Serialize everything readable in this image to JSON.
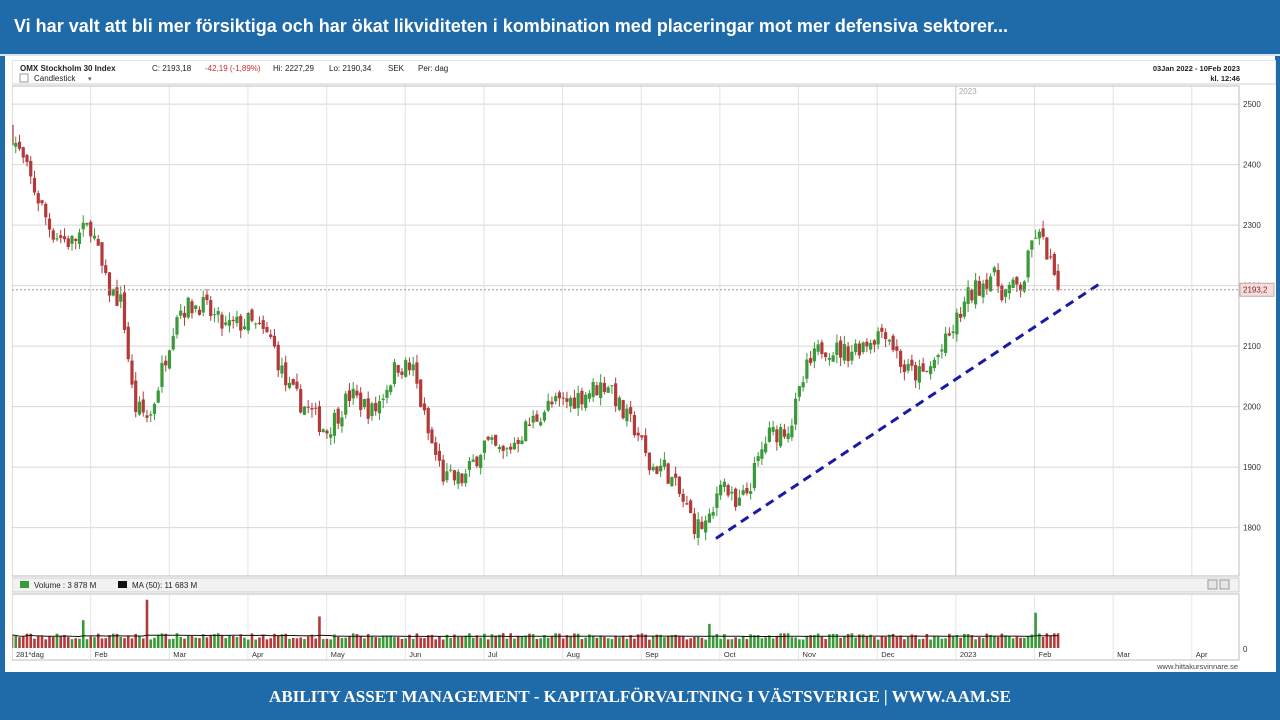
{
  "header": {
    "title": "Vi har valt att bli mer försiktiga och har ökat likviditeten i kombination  med placeringar mot mer defensiva sektorer..."
  },
  "footer": {
    "text": "ABILITY ASSET MANAGEMENT -  KAPITALFÖRVALTNING I VÄSTSVERIGE   |   WWW.AAM.SE"
  },
  "chart_header": {
    "index_name": "OMX Stockholm 30 Index",
    "close": "C: 2193,18",
    "change": "-42,19 (-1,89%)",
    "high": "Hi: 2227,29",
    "low": "Lo: 2190,34",
    "currency": "SEK",
    "period": "Per: dag",
    "chart_type": "Candlestick",
    "dropdown_glyph": "▾",
    "date_range": "03Jan 2022 - 10Feb 2023",
    "time": "kl. 12:46"
  },
  "volume_legend": {
    "volume": "Volume : 3 878 M",
    "ma": "MA (50): 11 683 M"
  },
  "watermark": "www.hittakursvinnare.se",
  "colors": {
    "up": "#3a9a3a",
    "down": "#b23a3a",
    "trendline": "#1a1aa6",
    "brand": "#1f6aa8",
    "grid": "#d8d8d8"
  },
  "chart_data": {
    "type": "candlestick",
    "year_label": "2023",
    "last_price_label": "2193,2",
    "last_price": 2193.2,
    "y_ticks": [
      2500,
      2400,
      2300,
      2200,
      2100,
      2000,
      1900,
      1800
    ],
    "ylim": [
      1720,
      2530
    ],
    "x_months": [
      "281*dag",
      "Feb",
      "Mar",
      "Apr",
      "May",
      "Jun",
      "Jul",
      "Aug",
      "Sep",
      "Oct",
      "Nov",
      "Dec",
      "2023",
      "Feb",
      "Mar",
      "Apr"
    ],
    "x_span_months": 15.6,
    "volume_axis_label": "0",
    "trendline": {
      "start": {
        "month": 8.95,
        "value": 1782
      },
      "end": {
        "month": 13.85,
        "value": 2205
      }
    },
    "anchors": [
      [
        0.0,
        2450
      ],
      [
        0.25,
        2370
      ],
      [
        0.5,
        2290
      ],
      [
        0.75,
        2270
      ],
      [
        1.0,
        2300
      ],
      [
        1.2,
        2200
      ],
      [
        1.4,
        2170
      ],
      [
        1.55,
        2000
      ],
      [
        1.75,
        1980
      ],
      [
        2.1,
        2160
      ],
      [
        2.4,
        2170
      ],
      [
        2.7,
        2130
      ],
      [
        3.0,
        2140
      ],
      [
        3.3,
        2110
      ],
      [
        3.5,
        2030
      ],
      [
        3.8,
        1990
      ],
      [
        4.0,
        1960
      ],
      [
        4.3,
        2020
      ],
      [
        4.6,
        1990
      ],
      [
        4.9,
        2070
      ],
      [
        5.1,
        2060
      ],
      [
        5.3,
        1950
      ],
      [
        5.5,
        1880
      ],
      [
        5.75,
        1880
      ],
      [
        6.0,
        1940
      ],
      [
        6.25,
        1920
      ],
      [
        6.5,
        1960
      ],
      [
        6.8,
        2000
      ],
      [
        7.1,
        2010
      ],
      [
        7.4,
        2030
      ],
      [
        7.6,
        2040
      ],
      [
        7.75,
        1990
      ],
      [
        7.95,
        1960
      ],
      [
        8.1,
        1900
      ],
      [
        8.3,
        1900
      ],
      [
        8.5,
        1850
      ],
      [
        8.7,
        1800
      ],
      [
        8.9,
        1810
      ],
      [
        9.0,
        1890
      ],
      [
        9.2,
        1830
      ],
      [
        9.35,
        1860
      ],
      [
        9.6,
        1950
      ],
      [
        9.9,
        1970
      ],
      [
        10.1,
        2060
      ],
      [
        10.3,
        2100
      ],
      [
        10.6,
        2090
      ],
      [
        10.9,
        2110
      ],
      [
        11.1,
        2130
      ],
      [
        11.35,
        2060
      ],
      [
        11.6,
        2050
      ],
      [
        11.9,
        2110
      ],
      [
        12.15,
        2180
      ],
      [
        12.45,
        2220
      ],
      [
        12.6,
        2190
      ],
      [
        12.85,
        2200
      ],
      [
        13.0,
        2290
      ],
      [
        13.15,
        2260
      ],
      [
        13.3,
        2193
      ]
    ],
    "volume_spikes": [
      [
        0.9,
        1.5
      ],
      [
        1.7,
        2.6
      ],
      [
        3.9,
        1.7
      ],
      [
        8.85,
        1.3
      ],
      [
        13.0,
        1.9
      ]
    ]
  }
}
